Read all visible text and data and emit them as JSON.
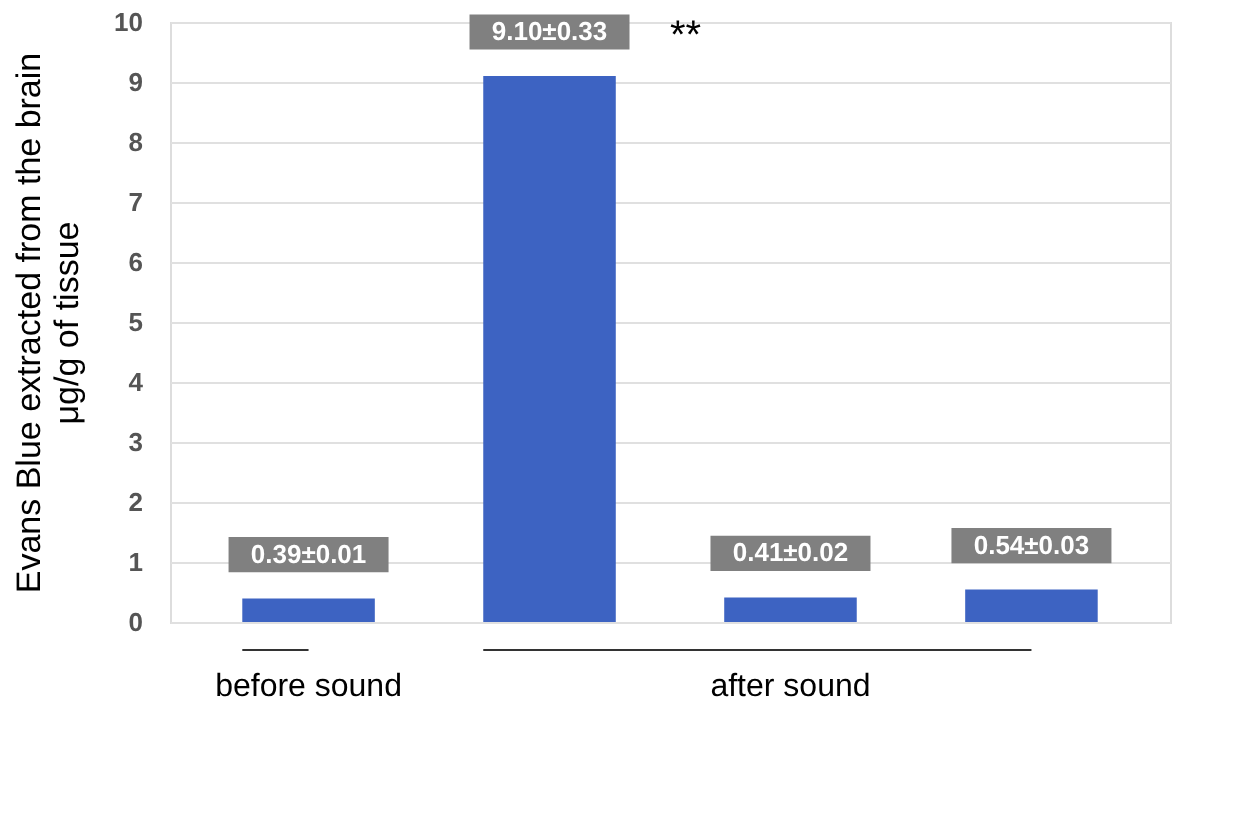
{
  "chart_data": {
    "type": "bar",
    "ylabel": "Evans Blue extracted from the brain\nμg/g of tissue",
    "categories": [
      null,
      null,
      null,
      null
    ],
    "values": [
      0.39,
      9.1,
      0.41,
      0.54
    ],
    "value_labels": [
      "0.39±0.01",
      "9.10±0.33",
      "0.41±0.02",
      "0.54±0.03"
    ],
    "color": "#3d63c2",
    "ylim": [
      0,
      10
    ],
    "yticks": [
      0,
      1,
      2,
      3,
      4,
      5,
      6,
      7,
      8,
      9,
      10
    ],
    "grid": "y",
    "annotations": [
      "before sound",
      "after sound",
      "**"
    ]
  }
}
